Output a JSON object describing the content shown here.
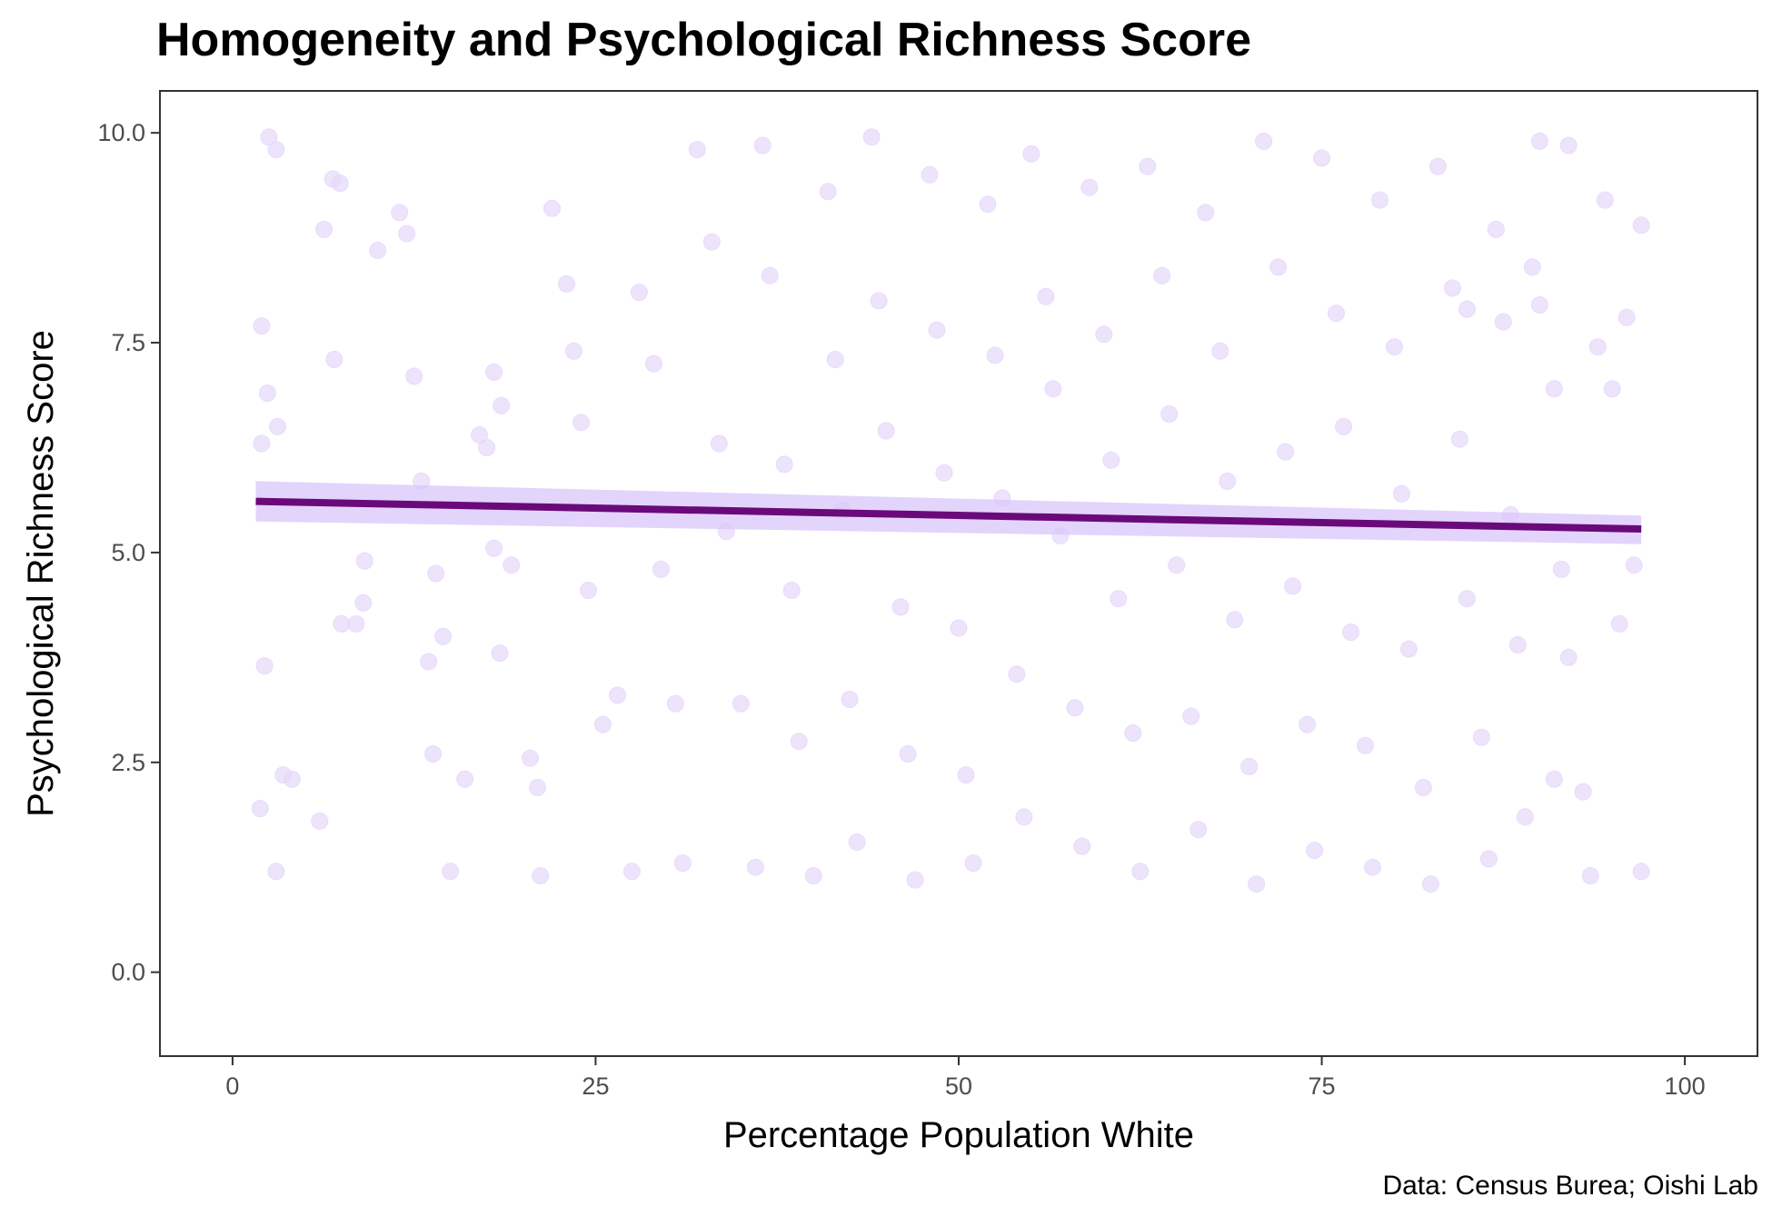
{
  "chart_data": {
    "type": "scatter",
    "title": "Homogeneity and Psychological Richness Score",
    "xlabel": "Percentage Population White",
    "ylabel": "Psychological Richness Score",
    "caption": "Data: Census Burea; Oishi Lab",
    "xlim": [
      -5,
      105
    ],
    "ylim": [
      -1,
      10.5
    ],
    "x_ticks": [
      0,
      25,
      50,
      75,
      100
    ],
    "x_tick_labels": [
      "0",
      "25",
      "50",
      "75",
      "100"
    ],
    "y_ticks": [
      0,
      2.5,
      5,
      7.5,
      10
    ],
    "y_tick_labels": [
      "0.0",
      "2.5",
      "5.0",
      "7.5",
      "10.0"
    ],
    "grid": false,
    "legend": "none",
    "point_color": "#e6d9fb",
    "fit_line_color": "#6a0a7a",
    "ci_band_color": "#d9c6fb",
    "series": [
      {
        "kind": "linear-fit",
        "x": [
          1.6,
          97
        ],
        "y": [
          5.61,
          5.28
        ],
        "ci_lower": [
          5.37,
          5.1
        ],
        "ci_upper": [
          5.85,
          5.44
        ]
      },
      {
        "kind": "points",
        "points": [
          [
            2,
            7.7
          ],
          [
            2.5,
            9.95
          ],
          [
            3,
            9.8
          ],
          [
            2,
            6.3
          ],
          [
            2.4,
            6.9
          ],
          [
            3.1,
            6.5
          ],
          [
            2.2,
            3.65
          ],
          [
            3.5,
            2.35
          ],
          [
            4.1,
            2.3
          ],
          [
            3,
            1.2
          ],
          [
            1.9,
            1.95
          ],
          [
            6,
            1.8
          ],
          [
            6.9,
            9.45
          ],
          [
            7.4,
            9.4
          ],
          [
            6.3,
            8.85
          ],
          [
            7,
            7.3
          ],
          [
            7.5,
            4.15
          ],
          [
            9,
            4.4
          ],
          [
            8.5,
            4.15
          ],
          [
            9.1,
            4.9
          ],
          [
            10,
            8.6
          ],
          [
            11.5,
            9.05
          ],
          [
            12,
            8.8
          ],
          [
            12.5,
            7.1
          ],
          [
            13,
            5.85
          ],
          [
            14,
            4.75
          ],
          [
            14.5,
            4
          ],
          [
            13.5,
            3.7
          ],
          [
            13.8,
            2.6
          ],
          [
            15,
            1.2
          ],
          [
            16,
            2.3
          ],
          [
            17,
            6.4
          ],
          [
            17.5,
            6.25
          ],
          [
            18,
            7.15
          ],
          [
            18.5,
            6.75
          ],
          [
            18,
            5.05
          ],
          [
            19.2,
            4.85
          ],
          [
            18.4,
            3.8
          ],
          [
            20.5,
            2.55
          ],
          [
            21,
            2.2
          ],
          [
            21.2,
            1.15
          ],
          [
            22,
            9.1
          ],
          [
            23,
            8.2
          ],
          [
            23.5,
            7.4
          ],
          [
            24,
            6.55
          ],
          [
            24.5,
            4.55
          ],
          [
            25.5,
            2.95
          ],
          [
            26.5,
            3.3
          ],
          [
            27.5,
            1.2
          ],
          [
            28,
            8.1
          ],
          [
            29,
            7.25
          ],
          [
            29.5,
            4.8
          ],
          [
            30.5,
            3.2
          ],
          [
            31,
            1.3
          ],
          [
            32,
            9.8
          ],
          [
            33,
            8.7
          ],
          [
            33.5,
            6.3
          ],
          [
            34,
            5.25
          ],
          [
            35,
            3.2
          ],
          [
            36,
            1.25
          ],
          [
            36.5,
            9.85
          ],
          [
            37,
            8.3
          ],
          [
            38,
            6.05
          ],
          [
            38.5,
            4.55
          ],
          [
            39,
            2.75
          ],
          [
            40,
            1.15
          ],
          [
            41,
            9.3
          ],
          [
            41.5,
            7.3
          ],
          [
            42,
            5.5
          ],
          [
            42.5,
            3.25
          ],
          [
            43,
            1.55
          ],
          [
            44,
            9.95
          ],
          [
            44.5,
            8
          ],
          [
            45,
            6.45
          ],
          [
            46,
            4.35
          ],
          [
            46.5,
            2.6
          ],
          [
            47,
            1.1
          ],
          [
            48,
            9.5
          ],
          [
            48.5,
            7.65
          ],
          [
            49,
            5.95
          ],
          [
            50,
            4.1
          ],
          [
            50.5,
            2.35
          ],
          [
            51,
            1.3
          ],
          [
            52,
            9.15
          ],
          [
            52.5,
            7.35
          ],
          [
            53,
            5.65
          ],
          [
            54,
            3.55
          ],
          [
            54.5,
            1.85
          ],
          [
            55,
            9.75
          ],
          [
            56,
            8.05
          ],
          [
            56.5,
            6.95
          ],
          [
            57,
            5.2
          ],
          [
            58,
            3.15
          ],
          [
            58.5,
            1.5
          ],
          [
            59,
            9.35
          ],
          [
            60,
            7.6
          ],
          [
            60.5,
            6.1
          ],
          [
            61,
            4.45
          ],
          [
            62,
            2.85
          ],
          [
            62.5,
            1.2
          ],
          [
            63,
            9.6
          ],
          [
            64,
            8.3
          ],
          [
            64.5,
            6.65
          ],
          [
            65,
            4.85
          ],
          [
            66,
            3.05
          ],
          [
            66.5,
            1.7
          ],
          [
            67,
            9.05
          ],
          [
            68,
            7.4
          ],
          [
            68.5,
            5.85
          ],
          [
            69,
            4.2
          ],
          [
            70,
            2.45
          ],
          [
            70.5,
            1.05
          ],
          [
            71,
            9.9
          ],
          [
            72,
            8.4
          ],
          [
            72.5,
            6.2
          ],
          [
            73,
            4.6
          ],
          [
            74,
            2.95
          ],
          [
            74.5,
            1.45
          ],
          [
            75,
            9.7
          ],
          [
            76,
            7.85
          ],
          [
            76.5,
            6.5
          ],
          [
            77,
            4.05
          ],
          [
            78,
            2.7
          ],
          [
            78.5,
            1.25
          ],
          [
            79,
            9.2
          ],
          [
            80,
            7.45
          ],
          [
            80.5,
            5.7
          ],
          [
            81,
            3.85
          ],
          [
            82,
            2.2
          ],
          [
            82.5,
            1.05
          ],
          [
            83,
            9.6
          ],
          [
            84,
            8.15
          ],
          [
            84.5,
            6.35
          ],
          [
            85,
            4.45
          ],
          [
            86,
            2.8
          ],
          [
            86.5,
            1.35
          ],
          [
            87,
            8.85
          ],
          [
            87.5,
            7.75
          ],
          [
            88,
            5.45
          ],
          [
            88.5,
            3.9
          ],
          [
            89,
            1.85
          ],
          [
            89.5,
            8.4
          ],
          [
            90,
            9.9
          ],
          [
            91,
            6.95
          ],
          [
            91.5,
            4.8
          ],
          [
            92,
            3.75
          ],
          [
            93,
            2.15
          ],
          [
            93.5,
            1.15
          ],
          [
            94,
            7.45
          ],
          [
            95,
            6.95
          ],
          [
            95.5,
            4.15
          ],
          [
            96.5,
            4.85
          ],
          [
            97,
            8.9
          ],
          [
            97,
            1.2
          ],
          [
            92,
            9.85
          ],
          [
            90,
            7.95
          ],
          [
            96,
            7.8
          ],
          [
            94.5,
            9.2
          ],
          [
            91,
            2.3
          ],
          [
            85,
            7.9
          ]
        ]
      }
    ]
  }
}
